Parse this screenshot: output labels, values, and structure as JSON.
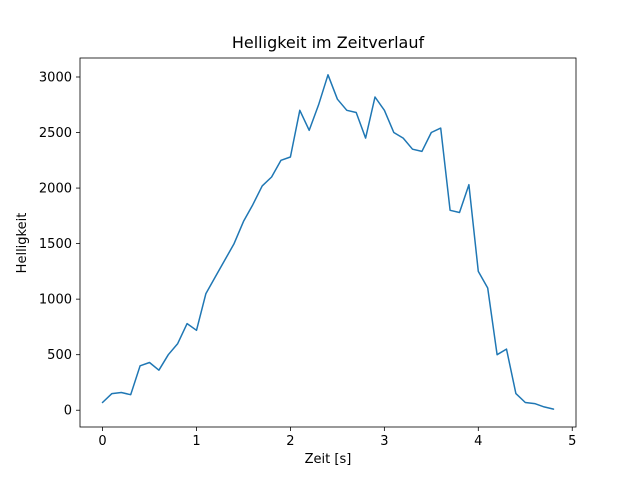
{
  "chart_data": {
    "type": "line",
    "title": "Helligkeit im Zeitverlauf",
    "xlabel": "Zeit [s]",
    "ylabel": "Helligkeit",
    "legend": null,
    "grid": false,
    "line_color": "#1f77b4",
    "xlim": [
      -0.24,
      5.04
    ],
    "ylim": [
      -151,
      3171
    ],
    "xticks": [
      0,
      1,
      2,
      3,
      4,
      5
    ],
    "yticks": [
      0,
      500,
      1000,
      1500,
      2000,
      2500,
      3000
    ],
    "x": [
      0.0,
      0.1,
      0.2,
      0.3,
      0.4,
      0.5,
      0.6,
      0.7,
      0.8,
      0.9,
      1.0,
      1.1,
      1.2,
      1.3,
      1.4,
      1.5,
      1.6,
      1.7,
      1.8,
      1.9,
      2.0,
      2.1,
      2.2,
      2.3,
      2.4,
      2.5,
      2.6,
      2.7,
      2.8,
      2.9,
      3.0,
      3.1,
      3.2,
      3.3,
      3.4,
      3.5,
      3.6,
      3.7,
      3.8,
      3.9,
      4.0,
      4.1,
      4.2,
      4.3,
      4.4,
      4.5,
      4.6,
      4.7,
      4.8
    ],
    "y": [
      70,
      150,
      160,
      140,
      400,
      430,
      360,
      500,
      600,
      780,
      720,
      1050,
      1200,
      1350,
      1500,
      1700,
      1850,
      2020,
      2100,
      2250,
      2280,
      2700,
      2520,
      2750,
      3020,
      2800,
      2700,
      2680,
      2450,
      2820,
      2700,
      2500,
      2450,
      2350,
      2330,
      2500,
      2540,
      1800,
      1780,
      2030,
      1250,
      1100,
      500,
      550,
      150,
      70,
      60,
      30,
      10
    ]
  }
}
